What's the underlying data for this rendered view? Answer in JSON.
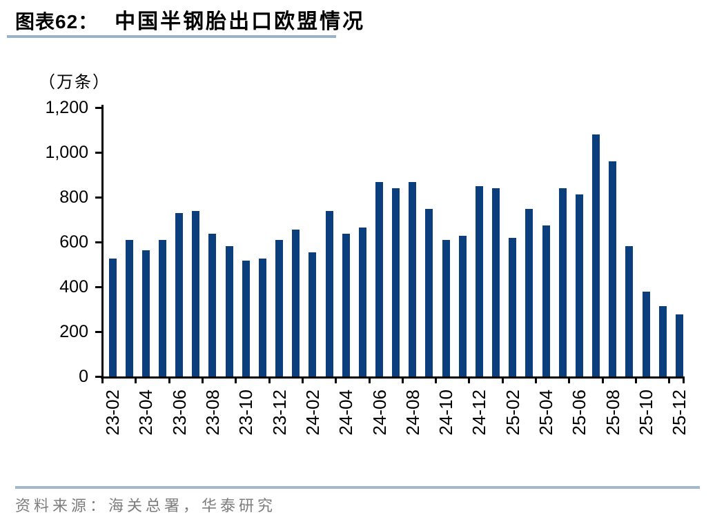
{
  "header": {
    "figure_label": "图表62：",
    "title": "中国半钢胎出口欧盟情况"
  },
  "source": {
    "text": "资料来源：海关总署，华泰研究",
    "text_color": "#7d7d7d"
  },
  "colors": {
    "bar": "#0a3e7d",
    "title_rule": "#9ab1ca",
    "source_rule": "#a2b8cd",
    "axis": "#000000"
  },
  "chart_data": {
    "type": "bar",
    "title": "中国半钢胎出口欧盟情况",
    "unit_label": "（万条）",
    "xlabel": "",
    "ylabel": "万条",
    "ylim": [
      0,
      1200
    ],
    "grid": false,
    "legend_position": "none",
    "x_label_interval": 2,
    "y_ticks": [
      0,
      200,
      400,
      600,
      800,
      1000,
      1200
    ],
    "y_tick_labels": [
      "0",
      "200",
      "400",
      "600",
      "800",
      "1,000",
      "1,200"
    ],
    "x_tick_labels_visible": [
      "23-02",
      "23-04",
      "23-06",
      "23-08",
      "23-10",
      "23-12",
      "24-02",
      "24-04",
      "24-06",
      "24-08",
      "24-10",
      "24-12",
      "25-02",
      "25-04",
      "25-06",
      "25-08",
      "25-10",
      "25-12"
    ],
    "categories": [
      "23-02",
      "23-03",
      "23-04",
      "23-05",
      "23-06",
      "23-07",
      "23-08",
      "23-09",
      "23-10",
      "23-11",
      "23-12",
      "24-01",
      "24-02",
      "24-03",
      "24-04",
      "24-05",
      "24-06",
      "24-07",
      "24-08",
      "24-09",
      "24-10",
      "24-11",
      "24-12",
      "25-01",
      "25-02",
      "25-03",
      "25-04",
      "25-05",
      "25-06",
      "25-07",
      "25-08",
      "25-09",
      "25-10",
      "25-11",
      "25-12"
    ],
    "values": [
      527,
      609,
      564,
      609,
      729,
      739,
      637,
      581,
      518,
      527,
      609,
      656,
      554,
      740,
      637,
      665,
      868,
      839,
      868,
      749,
      608,
      627,
      849,
      839,
      617,
      747,
      674,
      839,
      811,
      1079,
      960,
      581,
      377,
      314,
      278
    ]
  }
}
